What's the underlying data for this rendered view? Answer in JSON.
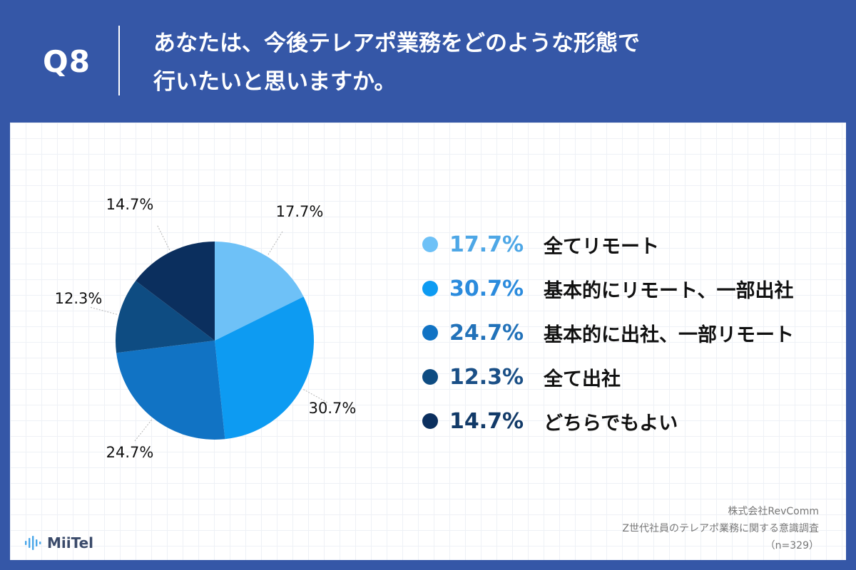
{
  "header": {
    "question_number": "Q8",
    "question_line1": "あなたは、今後テレアポ業務をどのような形態で",
    "question_line2": "行いたいと思いますか。"
  },
  "chart_data": {
    "type": "pie",
    "title": "",
    "categories": [
      "全てリモート",
      "基本的にリモート、一部出社",
      "基本的に出社、一部リモート",
      "全て出社",
      "どちらでもよい"
    ],
    "values": [
      17.7,
      30.7,
      24.7,
      12.3,
      14.7
    ],
    "value_labels": [
      "17.7%",
      "30.7%",
      "24.7%",
      "12.3%",
      "14.7%"
    ],
    "colors": [
      "#6ec1f7",
      "#0d9bf2",
      "#1173c4",
      "#0e4c82",
      "#0b2f5e"
    ],
    "start_angle": "12 o'clock",
    "direction": "clockwise",
    "legend_position": "right"
  },
  "legend": {
    "pct_colors": [
      "#4ea7e6",
      "#2b8bdd",
      "#2272b9",
      "#1a4f86",
      "#123a68"
    ]
  },
  "footer": {
    "logo_text": "MiiTel",
    "source_line1": "株式会社RevComm",
    "source_line2": "Z世代社員のテレアポ業務に関する意識調査",
    "source_line3": "（n=329）"
  }
}
